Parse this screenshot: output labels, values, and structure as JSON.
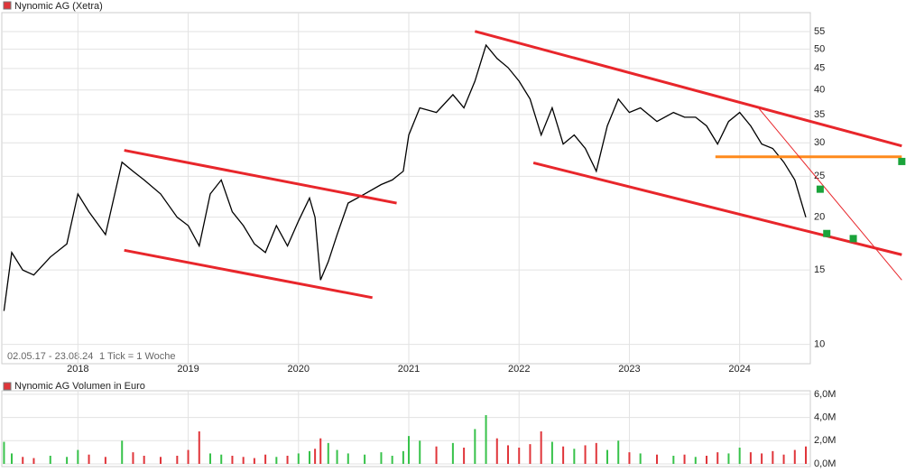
{
  "chart_data": [
    {
      "type": "line",
      "title": "Nynomic AG (Xetra)",
      "subtitle": "02.05.17 - 23.08.24",
      "note": "1 Tick = 1 Woche",
      "color": "#000000",
      "log_scale": true,
      "grid": true,
      "x": [
        2017.33,
        2017.4,
        2017.5,
        2017.6,
        2017.75,
        2017.9,
        2018.0,
        2018.1,
        2018.25,
        2018.4,
        2018.5,
        2018.6,
        2018.75,
        2018.9,
        2019.0,
        2019.1,
        2019.2,
        2019.3,
        2019.4,
        2019.5,
        2019.6,
        2019.7,
        2019.8,
        2019.9,
        2020.0,
        2020.1,
        2020.15,
        2020.2,
        2020.27,
        2020.35,
        2020.45,
        2020.6,
        2020.75,
        2020.85,
        2020.95,
        2021.0,
        2021.1,
        2021.25,
        2021.4,
        2021.5,
        2021.6,
        2021.7,
        2021.8,
        2021.9,
        2022.0,
        2022.1,
        2022.2,
        2022.3,
        2022.4,
        2022.5,
        2022.6,
        2022.7,
        2022.8,
        2022.9,
        2023.0,
        2023.1,
        2023.25,
        2023.4,
        2023.5,
        2023.6,
        2023.7,
        2023.8,
        2023.9,
        2024.0,
        2024.1,
        2024.2,
        2024.3,
        2024.4,
        2024.5,
        2024.6
      ],
      "values": [
        12.0,
        16.5,
        15.0,
        14.6,
        16.1,
        17.3,
        22.7,
        20.6,
        18.2,
        27.0,
        25.7,
        24.5,
        22.7,
        20.0,
        19.1,
        17.1,
        22.7,
        24.5,
        20.6,
        19.1,
        17.3,
        16.5,
        19.1,
        17.1,
        19.6,
        22.2,
        20.0,
        14.2,
        15.7,
        18.2,
        21.6,
        22.7,
        23.9,
        24.5,
        25.7,
        31.3,
        36.3,
        35.4,
        39.0,
        36.3,
        42.0,
        51.1,
        47.5,
        45.2,
        42.0,
        38.1,
        31.3,
        36.3,
        29.8,
        31.3,
        29.1,
        25.7,
        32.9,
        38.1,
        35.4,
        36.3,
        33.7,
        35.4,
        34.5,
        34.5,
        32.9,
        29.8,
        33.7,
        35.4,
        32.9,
        29.8,
        29.1,
        27.0,
        24.5,
        20.0
      ],
      "xlim": [
        2017.31,
        2025.5
      ],
      "xticks": [
        2018,
        2019,
        2020,
        2021,
        2022,
        2023,
        2024
      ],
      "ylim": [
        9,
        61
      ],
      "yticks": [
        10,
        15,
        20,
        25,
        30,
        35,
        40,
        45,
        50,
        55
      ],
      "trendlines": [
        {
          "color": "#e8262b",
          "x": [
            2018.42,
            2020.89
          ],
          "y": [
            28.8,
            21.6
          ]
        },
        {
          "color": "#e8262b",
          "x": [
            2018.42,
            2020.67
          ],
          "y": [
            16.7,
            12.9
          ]
        },
        {
          "color": "#e8262b",
          "x": [
            2021.6,
            2025.47
          ],
          "y": [
            55.1,
            29.5
          ]
        },
        {
          "color": "#e8262b",
          "x": [
            2022.13,
            2025.47
          ],
          "y": [
            26.9,
            16.3
          ]
        },
        {
          "color": "#ff8a1c",
          "x": [
            2023.78,
            2025.47
          ],
          "y": [
            27.8,
            27.8
          ]
        },
        {
          "color": "#e8262b",
          "x": [
            2024.17,
            2025.47
          ],
          "y": [
            36.3,
            14.2
          ]
        }
      ],
      "signals": {
        "color": "#1aa33a",
        "x": [
          2024.73,
          2024.79,
          2025.03,
          2025.47
        ],
        "values": [
          23.3,
          18.3,
          17.8,
          27.1
        ]
      }
    },
    {
      "type": "bar",
      "title": "Nynomic AG Volumen in Euro",
      "up_color": "#37c24a",
      "down_color": "#e0353a",
      "grid": true,
      "x": [
        2017.33,
        2017.4,
        2017.5,
        2017.6,
        2017.75,
        2017.9,
        2018.0,
        2018.1,
        2018.25,
        2018.4,
        2018.5,
        2018.6,
        2018.75,
        2018.9,
        2019.0,
        2019.1,
        2019.2,
        2019.3,
        2019.4,
        2019.5,
        2019.6,
        2019.7,
        2019.8,
        2019.9,
        2020.0,
        2020.1,
        2020.15,
        2020.2,
        2020.27,
        2020.35,
        2020.45,
        2020.6,
        2020.75,
        2020.85,
        2020.95,
        2021.0,
        2021.1,
        2021.25,
        2021.4,
        2021.5,
        2021.6,
        2021.7,
        2021.8,
        2021.9,
        2022.0,
        2022.1,
        2022.2,
        2022.3,
        2022.4,
        2022.5,
        2022.6,
        2022.7,
        2022.8,
        2022.9,
        2023.0,
        2023.1,
        2023.25,
        2023.4,
        2023.5,
        2023.6,
        2023.7,
        2023.8,
        2023.9,
        2024.0,
        2024.1,
        2024.2,
        2024.3,
        2024.4,
        2024.5,
        2024.6
      ],
      "values": [
        1900000,
        900000,
        600000,
        500000,
        700000,
        600000,
        1200000,
        800000,
        600000,
        2000000,
        1000000,
        700000,
        600000,
        700000,
        1200000,
        2800000,
        900000,
        800000,
        700000,
        600000,
        500000,
        800000,
        600000,
        700000,
        900000,
        1100000,
        1300000,
        2200000,
        1800000,
        1200000,
        900000,
        800000,
        1000000,
        700000,
        1100000,
        2400000,
        2000000,
        1500000,
        1800000,
        1400000,
        3000000,
        4200000,
        2200000,
        1600000,
        1400000,
        1700000,
        2800000,
        1900000,
        1500000,
        1300000,
        1600000,
        1800000,
        1200000,
        2000000,
        1000000,
        900000,
        800000,
        700000,
        800000,
        600000,
        700000,
        1000000,
        900000,
        1400000,
        1000000,
        900000,
        1100000,
        800000,
        1200000,
        1500000
      ],
      "xlim": [
        2017.31,
        2025.5
      ],
      "xticks": [
        2018,
        2019,
        2020,
        2021,
        2022,
        2023,
        2024
      ],
      "ylim": [
        0,
        6300000
      ],
      "yticks": [
        {
          "value": 0,
          "label": "0,0M"
        },
        {
          "value": 2000000,
          "label": "2,0M"
        },
        {
          "value": 4000000,
          "label": "4,0M"
        },
        {
          "value": 6000000,
          "label": "6,0M"
        }
      ]
    }
  ]
}
